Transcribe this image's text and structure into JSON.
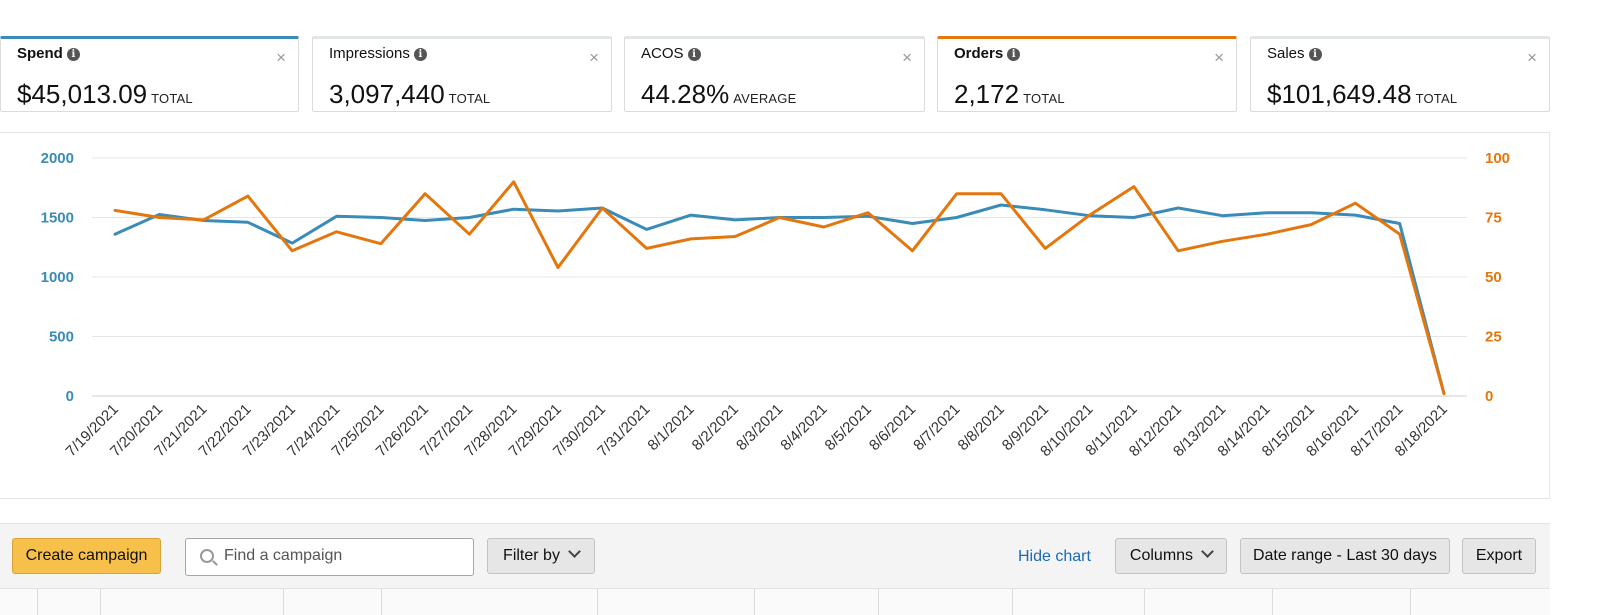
{
  "metrics": [
    {
      "label": "Spend",
      "value": "$45,013.09",
      "suffix": "TOTAL",
      "selected": true,
      "accent": "#3a8bb7"
    },
    {
      "label": "Impressions",
      "value": "3,097,440",
      "suffix": "TOTAL",
      "selected": false,
      "accent": ""
    },
    {
      "label": "ACOS",
      "value": "44.28%",
      "suffix": "AVERAGE",
      "selected": false,
      "accent": ""
    },
    {
      "label": "Orders",
      "value": "2,172",
      "suffix": "TOTAL",
      "selected": true,
      "accent": "#e3770d"
    },
    {
      "label": "Sales",
      "value": "$101,649.48",
      "suffix": "TOTAL",
      "selected": false,
      "accent": ""
    }
  ],
  "icons": {
    "info": "info-icon",
    "close": "close-icon",
    "search": "search-icon",
    "dropdown": "chevron-down-icon"
  },
  "chart_data": {
    "type": "line",
    "x": [
      "7/19/2021",
      "7/20/2021",
      "7/21/2021",
      "7/22/2021",
      "7/23/2021",
      "7/24/2021",
      "7/25/2021",
      "7/26/2021",
      "7/27/2021",
      "7/28/2021",
      "7/29/2021",
      "7/30/2021",
      "7/31/2021",
      "8/1/2021",
      "8/2/2021",
      "8/3/2021",
      "8/4/2021",
      "8/5/2021",
      "8/6/2021",
      "8/7/2021",
      "8/8/2021",
      "8/9/2021",
      "8/10/2021",
      "8/11/2021",
      "8/12/2021",
      "8/13/2021",
      "8/14/2021",
      "8/15/2021",
      "8/16/2021",
      "8/17/2021",
      "8/18/2021"
    ],
    "series": [
      {
        "name": "Spend",
        "axis": "left",
        "color": "#3a8bb7",
        "values": [
          1360,
          1525,
          1475,
          1460,
          1285,
          1510,
          1500,
          1475,
          1500,
          1570,
          1555,
          1580,
          1400,
          1520,
          1480,
          1500,
          1500,
          1510,
          1450,
          1500,
          1605,
          1565,
          1515,
          1500,
          1580,
          1515,
          1540,
          1540,
          1520,
          1450,
          20
        ]
      },
      {
        "name": "Orders",
        "axis": "right",
        "color": "#e3770d",
        "values": [
          78,
          75,
          74,
          84,
          61,
          69,
          64,
          85,
          68,
          90,
          54,
          79,
          62,
          66,
          67,
          75,
          71,
          77,
          61,
          85,
          85,
          62,
          76,
          88,
          61,
          65,
          68,
          72,
          81,
          68,
          1
        ]
      }
    ],
    "y_left": {
      "ticks": [
        "0",
        "500",
        "1000",
        "1500",
        "2000"
      ],
      "lim": [
        0,
        2000
      ]
    },
    "y_right": {
      "ticks": [
        "0",
        "25",
        "50",
        "75",
        "100"
      ],
      "lim": [
        0,
        100
      ]
    },
    "grid": true
  },
  "toolbar": {
    "create_label": "Create campaign",
    "search_placeholder": "Find a campaign",
    "filter_label": "Filter by",
    "hide_chart_label": "Hide chart",
    "columns_label": "Columns",
    "date_range_label": "Date range - Last 30 days",
    "export_label": "Export"
  }
}
